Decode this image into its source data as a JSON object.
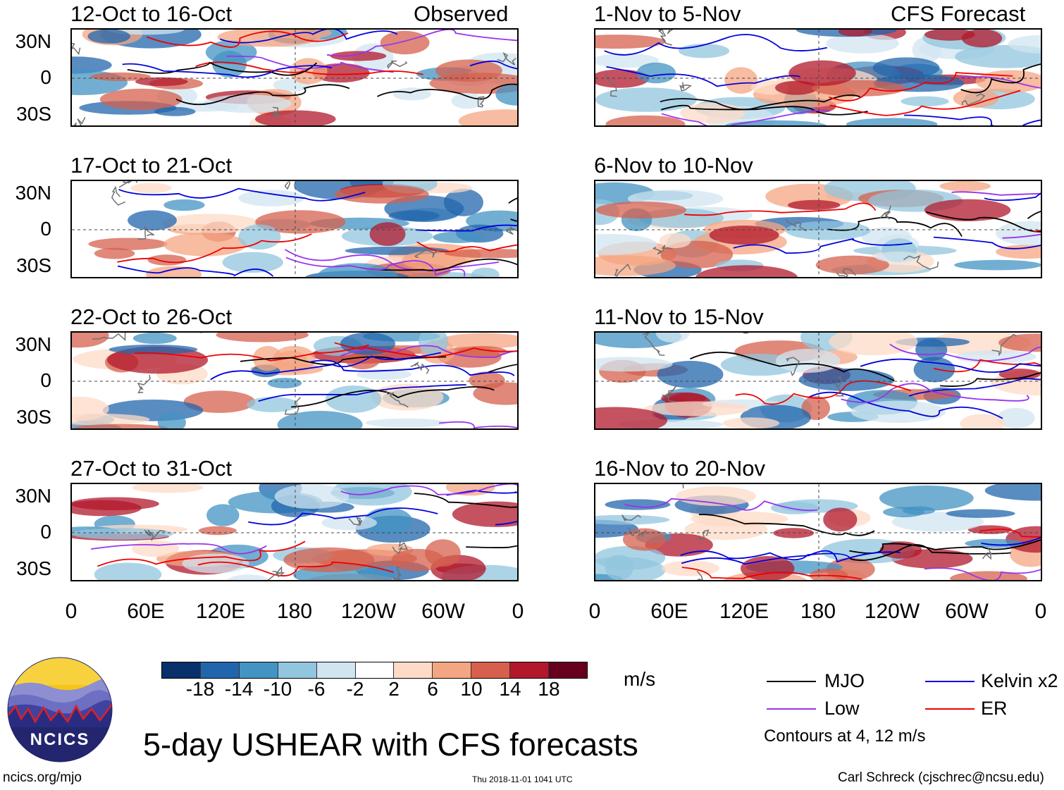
{
  "observed_label": "Observed",
  "forecast_label": "CFS Forecast",
  "panels_left": [
    {
      "title": "12-Oct to 16-Oct"
    },
    {
      "title": "17-Oct to 21-Oct"
    },
    {
      "title": "22-Oct to 26-Oct"
    },
    {
      "title": "27-Oct to 31-Oct"
    }
  ],
  "panels_right": [
    {
      "title": "1-Nov to 5-Nov"
    },
    {
      "title": "6-Nov to 10-Nov"
    },
    {
      "title": "11-Nov to 15-Nov"
    },
    {
      "title": "16-Nov to 20-Nov"
    }
  ],
  "lat_labels": [
    "30N",
    "0",
    "30S"
  ],
  "lon_labels": [
    "0",
    "60E",
    "120E",
    "180",
    "120W",
    "60W",
    "0"
  ],
  "colorbar": {
    "labels": [
      "-18",
      "-14",
      "-10",
      "-6",
      "-2",
      "2",
      "6",
      "10",
      "14",
      "18"
    ],
    "units": "m/s",
    "colors": [
      "#08306b",
      "#2166ac",
      "#4393c3",
      "#92c5de",
      "#d1e5f0",
      "#ffffff",
      "#fddbc7",
      "#f4a582",
      "#d6604d",
      "#b2182b",
      "#67001f"
    ]
  },
  "legend": {
    "items": [
      {
        "label": "MJO",
        "color": "#000000"
      },
      {
        "label": "Kelvin x2",
        "color": "#0000dd"
      },
      {
        "label": "Low",
        "color": "#9933ee"
      },
      {
        "label": "ER",
        "color": "#ee0000"
      }
    ],
    "contours_note": "Contours at 4, 12 m/s"
  },
  "main_title": "5-day USHEAR with CFS forecasts",
  "logo_text": "NCICS",
  "footer": {
    "left": "ncics.org/mjo",
    "center": "Thu 2018-11-01 1041 UTC",
    "right": "Carl Schreck (cjschrec@ncsu.edu)"
  }
}
